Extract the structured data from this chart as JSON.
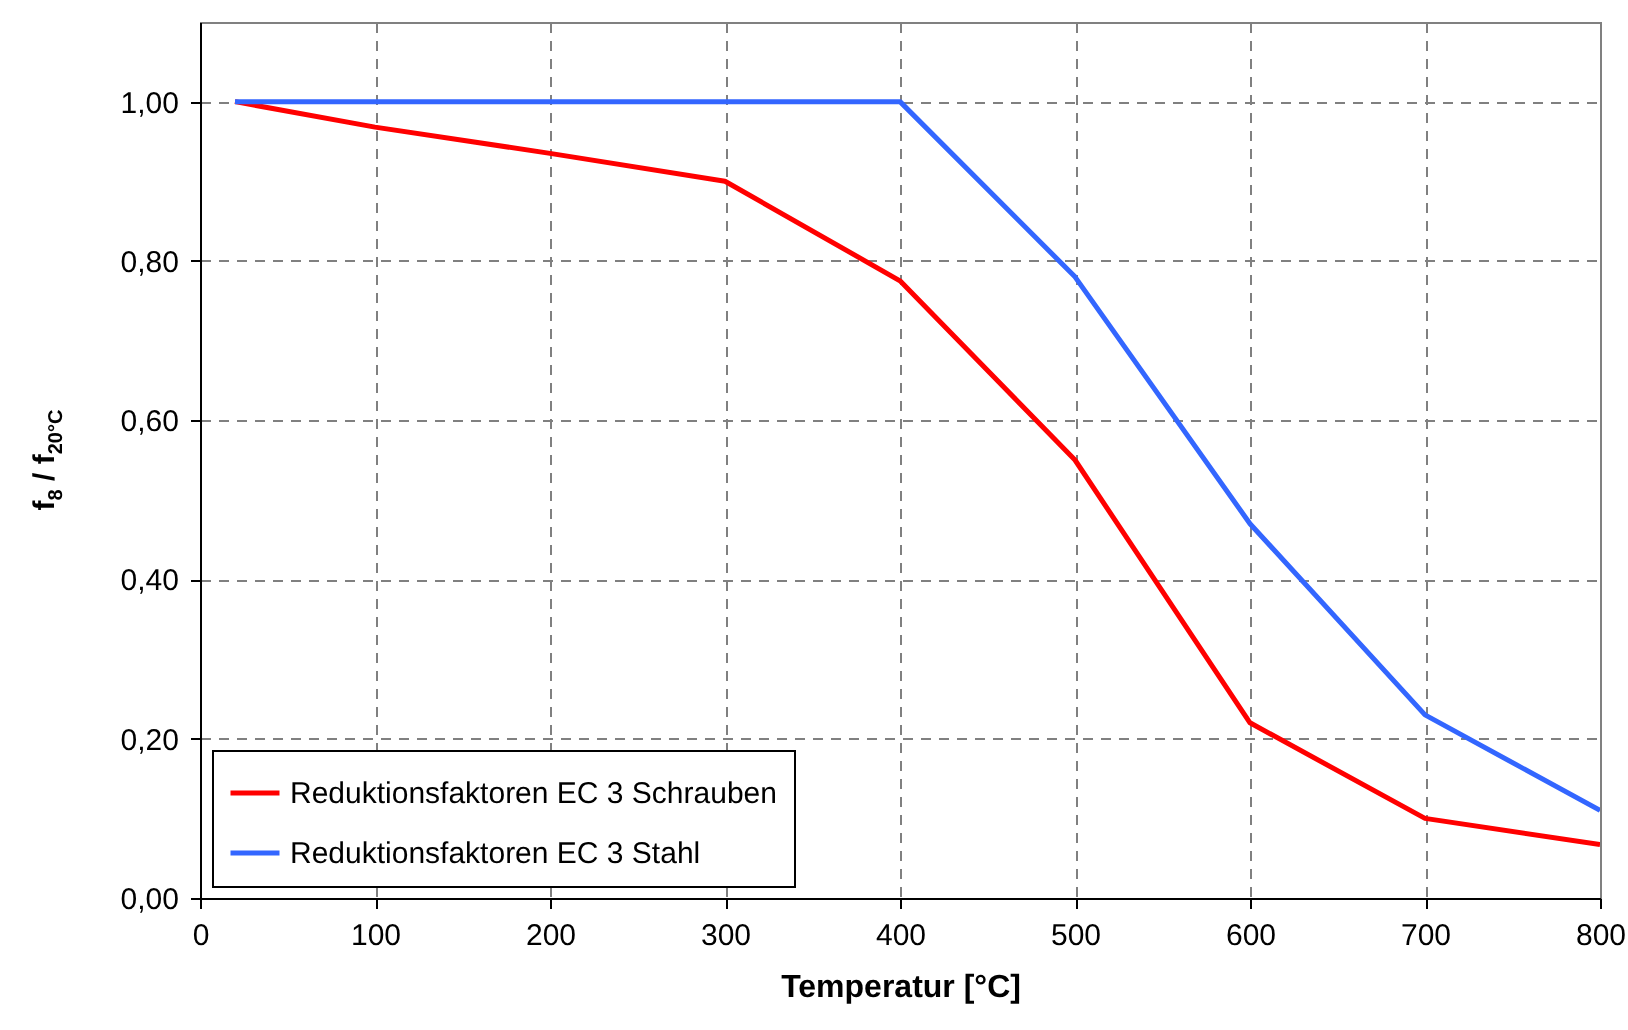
{
  "chart_data": {
    "type": "line",
    "xlabel": "Temperatur [°C]",
    "ylabel": "f$_{8}$ / f$_{20°C}$",
    "x": [
      20,
      100,
      200,
      300,
      400,
      500,
      600,
      700,
      800
    ],
    "series": [
      {
        "name": "Reduktionsfaktoren EC 3 Schrauben",
        "color": "#ff0000",
        "values": [
          1.0,
          0.968,
          0.935,
          0.9,
          0.775,
          0.55,
          0.22,
          0.1,
          0.067
        ]
      },
      {
        "name": "Reduktionsfaktoren EC 3 Stahl",
        "color": "#3366ff",
        "values": [
          1.0,
          1.0,
          1.0,
          1.0,
          1.0,
          0.78,
          0.47,
          0.23,
          0.11
        ]
      }
    ],
    "xlim": [
      0,
      800
    ],
    "xticks": [
      0,
      100,
      200,
      300,
      400,
      500,
      600,
      700,
      800
    ],
    "ylim": [
      0,
      1.1
    ],
    "yticks": [
      {
        "value": 0,
        "label": "0,00"
      },
      {
        "value": 0.2,
        "label": "0,20"
      },
      {
        "value": 0.4,
        "label": "0,40"
      },
      {
        "value": 0.6,
        "label": "0,60"
      },
      {
        "value": 0.8,
        "label": "0,80"
      },
      {
        "value": 1.0,
        "label": "1,00"
      }
    ],
    "grid": true,
    "legend": "bottom left",
    "marker": "none",
    "line_style": "solid"
  }
}
